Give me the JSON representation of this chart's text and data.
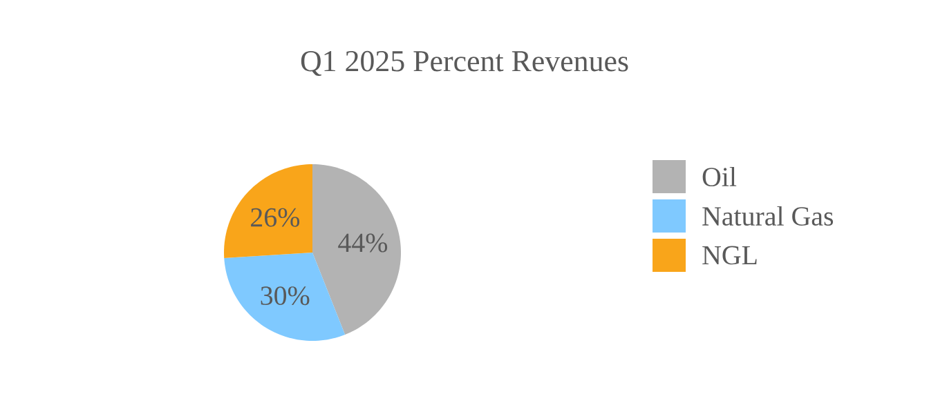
{
  "chart_data": {
    "type": "pie",
    "title": "Q1 2025 Percent Revenues",
    "categories": [
      "Oil",
      "Natural Gas",
      "NGL"
    ],
    "values": [
      44,
      30,
      26
    ],
    "value_labels": [
      "44%",
      "30%",
      "26%"
    ],
    "colors": [
      "#b3b3b3",
      "#7fc9ff",
      "#f9a51a"
    ],
    "legend": "right"
  }
}
